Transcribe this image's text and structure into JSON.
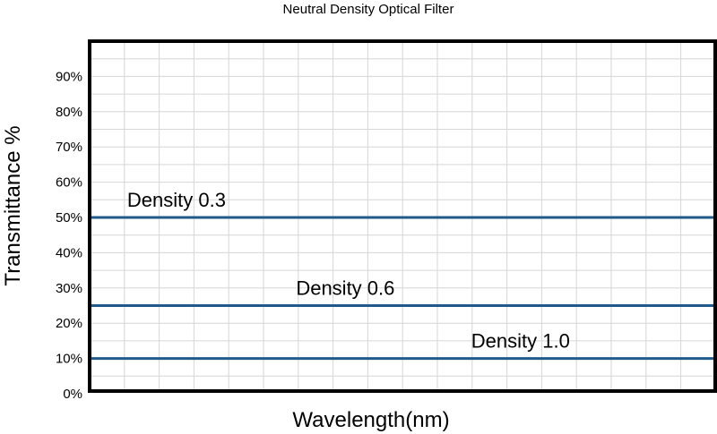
{
  "chart_data": {
    "type": "line",
    "title": "Neutral Density Optical Filter",
    "xlabel": "Wavelength(nm)",
    "ylabel": "Transmittance %",
    "ylim": [
      0,
      100
    ],
    "yticks": [
      0,
      10,
      20,
      30,
      40,
      50,
      60,
      70,
      80,
      90
    ],
    "ytick_labels": [
      "0%",
      "10%",
      "20%",
      "30%",
      "40%",
      "50%",
      "60%",
      "70%",
      "80%",
      "90%"
    ],
    "grid": true,
    "line_color": "#1f5a8a",
    "series": [
      {
        "name": "Density 0.3",
        "value": 50,
        "label_pos": 0.06
      },
      {
        "name": "Density 0.6",
        "value": 25,
        "label_pos": 0.33
      },
      {
        "name": "Density 1.0",
        "value": 10,
        "label_pos": 0.61
      }
    ]
  }
}
